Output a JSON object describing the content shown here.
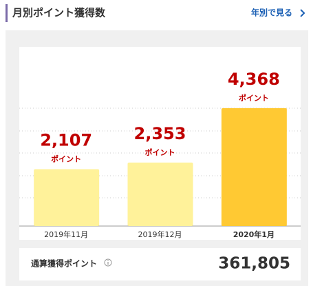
{
  "header": {
    "title": "月別ポイント獲得数",
    "link": "年別で見る"
  },
  "chart_data": {
    "type": "bar",
    "categories": [
      "2019年11月",
      "2019年12月",
      "2020年1月"
    ],
    "values": [
      2107,
      2353,
      4368
    ],
    "value_labels": [
      "2,107",
      "2,353",
      "4,368"
    ],
    "unit": "ポイント",
    "colors": [
      "#fff29a",
      "#fff29a",
      "#ffc933"
    ],
    "label_color": "#c00000",
    "highlight_index": 2,
    "ylim": [
      0,
      6640
    ]
  },
  "total": {
    "label": "通算獲得ポイント",
    "value": "361,805"
  }
}
